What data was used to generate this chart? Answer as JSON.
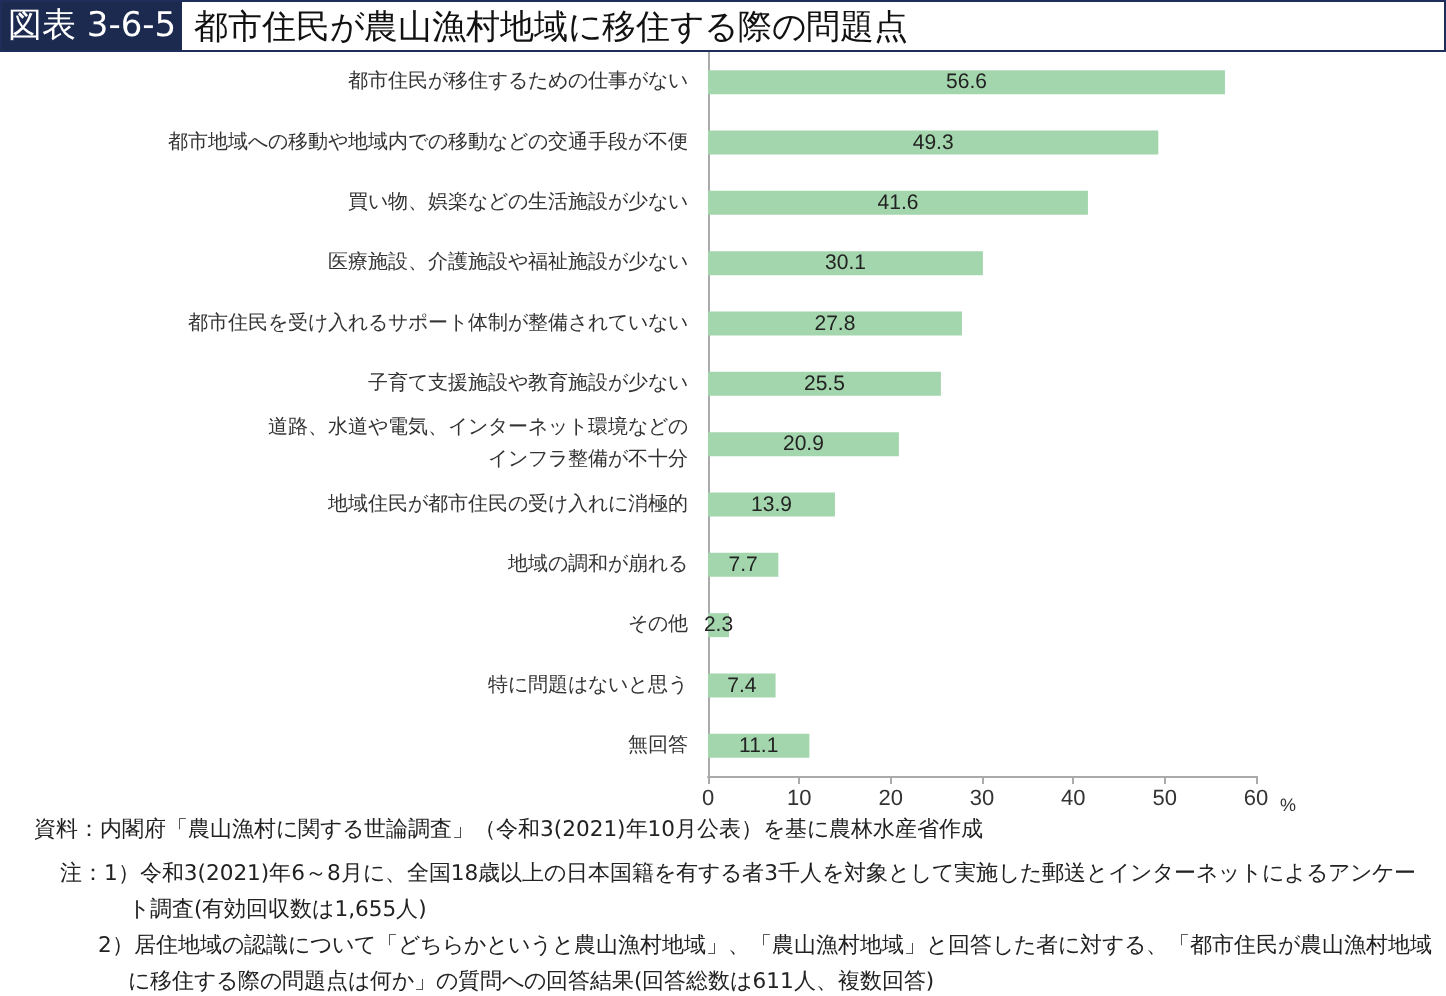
{
  "chart_data": {
    "type": "bar",
    "orientation": "horizontal",
    "title": "図表 3-6-5 都市住民が農山漁村地域に移住する際の問題点",
    "xlabel": "%",
    "categories": [
      "都市住民が移住するための仕事がない",
      "都市地域への移動や地域内での移動などの交通手段が不便",
      "買い物、娯楽などの生活施設が少ない",
      "医療施設、介護施設や福祉施設が少ない",
      "都市住民を受け入れるサポート体制が整備されていない",
      "子育て支援施設や教育施設が少ない",
      "道路、水道や電気、インターネット環境などのインフラ整備が不十分",
      "地域住民が都市住民の受け入れに消極的",
      "地域の調和が崩れる",
      "その他",
      "特に問題はないと思う",
      "無回答"
    ],
    "values": [
      56.6,
      49.3,
      41.6,
      30.1,
      27.8,
      25.5,
      20.9,
      13.9,
      7.7,
      2.3,
      7.4,
      11.1
    ],
    "color": "#a3d6ad",
    "xlim": [
      0,
      60
    ],
    "xticks": [
      0,
      10,
      20,
      30,
      40,
      50,
      60
    ],
    "grid": false,
    "data_labels": true,
    "annotations": [
      "資料：内閣府「農山漁村に関する世論調査」（令和3(2021)年10月公表）を基に農林水産省作成",
      "注：1）令和3(2021)年6～8月に、全国18歳以上の日本国籍を有する者3千人を対象として実施した郵送とインターネットによるアンケート調査(有効回収数は1,655人)",
      "2）居住地域の認識について「どちらかというと農山漁村地域」、「農山漁村地域」と回答した者に対する、「都市住民が農山漁村地域に移住する際の問題点は何か」の質問への回答結果(回答総数は611人、複数回答)"
    ]
  }
}
